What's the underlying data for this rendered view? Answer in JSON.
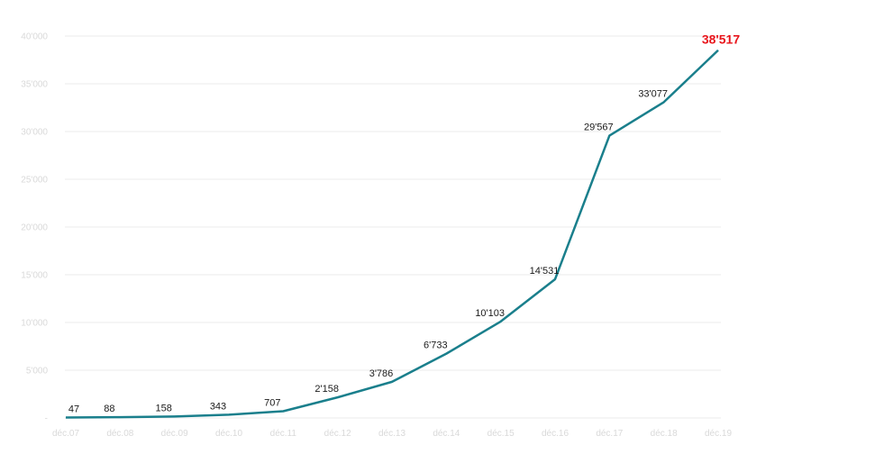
{
  "chart_data": {
    "type": "line",
    "title": "",
    "xlabel": "",
    "ylabel": "",
    "categories": [
      "déc.07",
      "déc.08",
      "déc.09",
      "déc.10",
      "déc.11",
      "déc.12",
      "déc.13",
      "déc.14",
      "déc.15",
      "déc.16",
      "déc.17",
      "déc.18",
      "déc.19"
    ],
    "series": [
      {
        "name": "",
        "color": "#1a7f8c",
        "values": [
          47,
          88,
          158,
          343,
          707,
          2158,
          3786,
          6733,
          10103,
          14531,
          29567,
          33077,
          38517
        ],
        "labels": [
          "47",
          "88",
          "158",
          "343",
          "707",
          "2'158",
          "3'786",
          "6'733",
          "10'103",
          "14'531",
          "29'567",
          "33'077",
          "38'517"
        ]
      }
    ],
    "ylim": [
      0,
      40000
    ],
    "yticks": [
      0,
      5000,
      10000,
      15000,
      20000,
      25000,
      30000,
      35000,
      40000
    ],
    "ytick_labels": [
      "-",
      "5'000",
      "10'000",
      "15'000",
      "20'000",
      "25'000",
      "30'000",
      "35'000",
      "40'000"
    ],
    "grid": true,
    "legend": "none",
    "highlight_last": {
      "label": "38'517",
      "color": "#e8141b"
    }
  }
}
